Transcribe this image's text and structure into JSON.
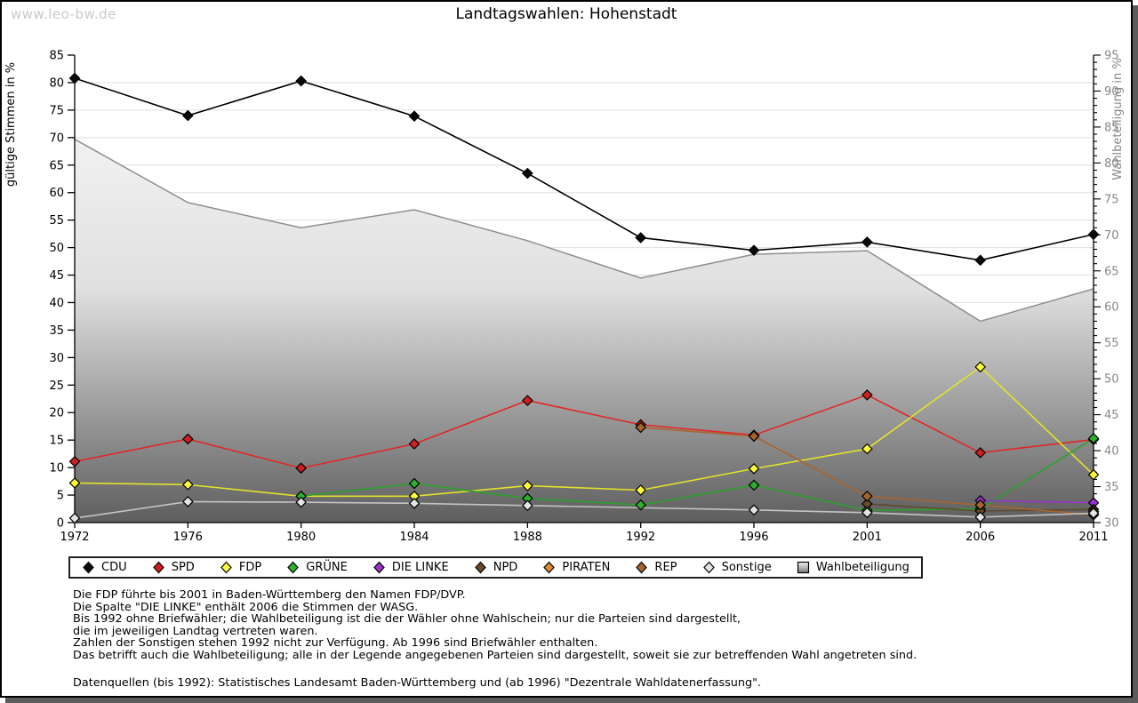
{
  "watermark": "www.leo-bw.de",
  "title": "Landtagswahlen: Hohenstadt",
  "colors": {
    "frame_shadow": "#5c5c5c",
    "watermark": "#c9c9c9",
    "grid": "#dedede",
    "axis_line": "#000000",
    "left_tick_text": "#000000",
    "right_tick_text": "#878787"
  },
  "chart_data": {
    "type": "line",
    "title": "Landtagswahlen: Hohenstadt",
    "x": [
      1972,
      1976,
      1980,
      1984,
      1988,
      1992,
      1996,
      2001,
      2006,
      2011
    ],
    "x_spacing": "equidistant",
    "ylabel_left": "gültige Stimmen in %",
    "ylabel_right": "Wahlbeteiligung in %",
    "ylim_left": [
      0,
      85
    ],
    "ylim_right": [
      30,
      95
    ],
    "ytick_step": 5,
    "right_minor_tick_step": 1,
    "grid": true,
    "legend_position": "bottom",
    "series": [
      {
        "name": "CDU",
        "axis": "left",
        "style": "line",
        "marker": "diamond",
        "line_color": "#000000",
        "marker_color": "#0a0a0a",
        "values": [
          80.8,
          74.0,
          80.3,
          73.9,
          63.5,
          51.8,
          49.5,
          51.0,
          47.7,
          52.4
        ]
      },
      {
        "name": "SPD",
        "axis": "left",
        "style": "line",
        "marker": "diamond",
        "line_color": "#e02828",
        "marker_color": "#cf1f1f",
        "values": [
          11.1,
          15.2,
          9.9,
          14.3,
          22.2,
          17.8,
          15.9,
          23.2,
          12.7,
          15.1
        ]
      },
      {
        "name": "FDP",
        "axis": "left",
        "style": "line",
        "marker": "diamond",
        "line_color": "#e2e22b",
        "marker_color": "#fdfd3a",
        "values": [
          7.2,
          6.9,
          4.8,
          4.8,
          6.7,
          5.9,
          9.8,
          13.4,
          28.3,
          8.7
        ]
      },
      {
        "name": "GRÜNE",
        "axis": "left",
        "style": "line",
        "marker": "diamond",
        "line_color": "#2aa22a",
        "marker_color": "#2eb02e",
        "values": [
          null,
          null,
          4.8,
          7.1,
          4.4,
          3.2,
          6.8,
          2.2,
          2.5,
          15.3
        ]
      },
      {
        "name": "DIE LINKE",
        "axis": "left",
        "style": "line",
        "marker": "diamond",
        "line_color": "#9933cc",
        "marker_color": "#9933cc",
        "values": [
          null,
          null,
          null,
          null,
          null,
          null,
          null,
          null,
          4.0,
          3.6
        ]
      },
      {
        "name": "NPD",
        "axis": "left",
        "style": "line",
        "marker": "diamond",
        "line_color": "#5e4a30",
        "marker_color": "#6a4a28",
        "values": [
          null,
          null,
          null,
          null,
          null,
          null,
          null,
          3.4,
          2.1,
          2.4
        ]
      },
      {
        "name": "PIRATEN",
        "axis": "left",
        "style": "line",
        "marker": "diamond",
        "line_color": "#e08a2e",
        "marker_color": "#e08a2e",
        "values": [
          null,
          null,
          null,
          null,
          null,
          null,
          null,
          null,
          null,
          2.0
        ]
      },
      {
        "name": "REP",
        "axis": "left",
        "style": "line",
        "marker": "diamond",
        "line_color": "#a8642e",
        "marker_color": "#a8642e",
        "values": [
          null,
          null,
          null,
          null,
          null,
          17.3,
          15.7,
          4.8,
          3.2,
          1.4
        ]
      },
      {
        "name": "Sonstige",
        "axis": "left",
        "style": "line",
        "marker": "diamond",
        "line_color": "#c4c4c4",
        "marker_color": "#e4e4e4",
        "values": [
          0.8,
          3.8,
          3.7,
          3.5,
          3.1,
          null,
          2.3,
          1.8,
          1.0,
          1.7
        ]
      },
      {
        "name": "Wahlbeteiligung",
        "axis": "right",
        "style": "area",
        "edge_color": "#8f8f8f",
        "gradient": [
          "#fbfbfb",
          "#e0e0e0",
          "#5e5e5e"
        ],
        "values": [
          83.3,
          74.5,
          71.0,
          73.5,
          69.2,
          64.0,
          67.3,
          67.8,
          58.0,
          62.5
        ]
      }
    ]
  },
  "footnotes": {
    "lines": [
      "Die FDP führte bis 2001 in Baden-Württemberg den Namen FDP/DVP.",
      "Die Spalte \"DIE LINKE\" enthält 2006 die Stimmen der WASG.",
      "Bis 1992 ohne Briefwähler; die Wahlbeteiligung ist die der Wähler ohne Wahlschein; nur die Parteien sind dargestellt,",
      "die im jeweiligen Landtag vertreten waren.",
      "Zahlen der Sonstigen stehen 1992 nicht zur Verfügung. Ab 1996 sind Briefwähler enthalten.",
      "Das betrifft auch die Wahlbeteiligung; alle in der Legende angegebenen Parteien sind dargestellt, soweit sie zur betreffenden Wahl angetreten sind."
    ],
    "source": "Datenquellen (bis 1992): Statistisches Landesamt Baden-Württemberg und (ab 1996) \"Dezentrale Wahldatenerfassung\"."
  }
}
